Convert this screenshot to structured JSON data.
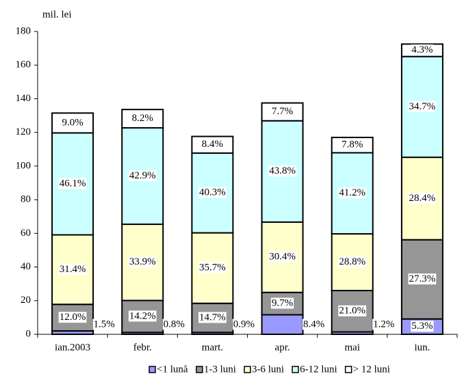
{
  "chart_data": {
    "type": "stacked-bar",
    "y_label": "mil. lei",
    "categories": [
      "ian.2003",
      "febr.",
      "mart.",
      "apr.",
      "mai",
      "iun."
    ],
    "series": [
      {
        "name": "<1 lună",
        "color": "#9999ff",
        "values": [
          2.0,
          1.1,
          1.1,
          11.6,
          1.4,
          9.1
        ],
        "value_labels": [
          "1.5%",
          "0.8%",
          "0.9%",
          "8.4%",
          "1.2%",
          "5.3%"
        ]
      },
      {
        "name": "1-3 luni",
        "color": "#969696",
        "values": [
          15.8,
          19.0,
          17.3,
          13.3,
          24.6,
          47.1
        ],
        "value_labels": [
          "12.0%",
          "14.2%",
          "14.7%",
          "9.7%",
          "21.0%",
          "27.3%"
        ]
      },
      {
        "name": "3-6 luni",
        "color": "#ffffcc",
        "values": [
          41.3,
          45.3,
          41.9,
          41.8,
          33.7,
          49.0
        ],
        "value_labels": [
          "31.4%",
          "33.9%",
          "35.7%",
          "30.4%",
          "28.8%",
          "28.4%"
        ]
      },
      {
        "name": "6-12 luni",
        "color": "#ccffff",
        "values": [
          60.6,
          57.3,
          47.4,
          60.2,
          48.2,
          59.9
        ],
        "value_labels": [
          "46.1%",
          "42.9%",
          "40.3%",
          "43.8%",
          "41.2%",
          "34.7%"
        ]
      },
      {
        "name": "> 12 luni",
        "color": "#ffffff",
        "values": [
          11.8,
          10.9,
          9.9,
          10.6,
          9.1,
          7.4
        ],
        "value_labels": [
          "9.0%",
          "8.2%",
          "8.4%",
          "7.7%",
          "7.8%",
          "4.3%"
        ]
      }
    ],
    "ylim": [
      0,
      180
    ],
    "yticks": [
      0,
      20,
      40,
      60,
      80,
      100,
      120,
      140,
      160,
      180
    ],
    "grid": false
  }
}
